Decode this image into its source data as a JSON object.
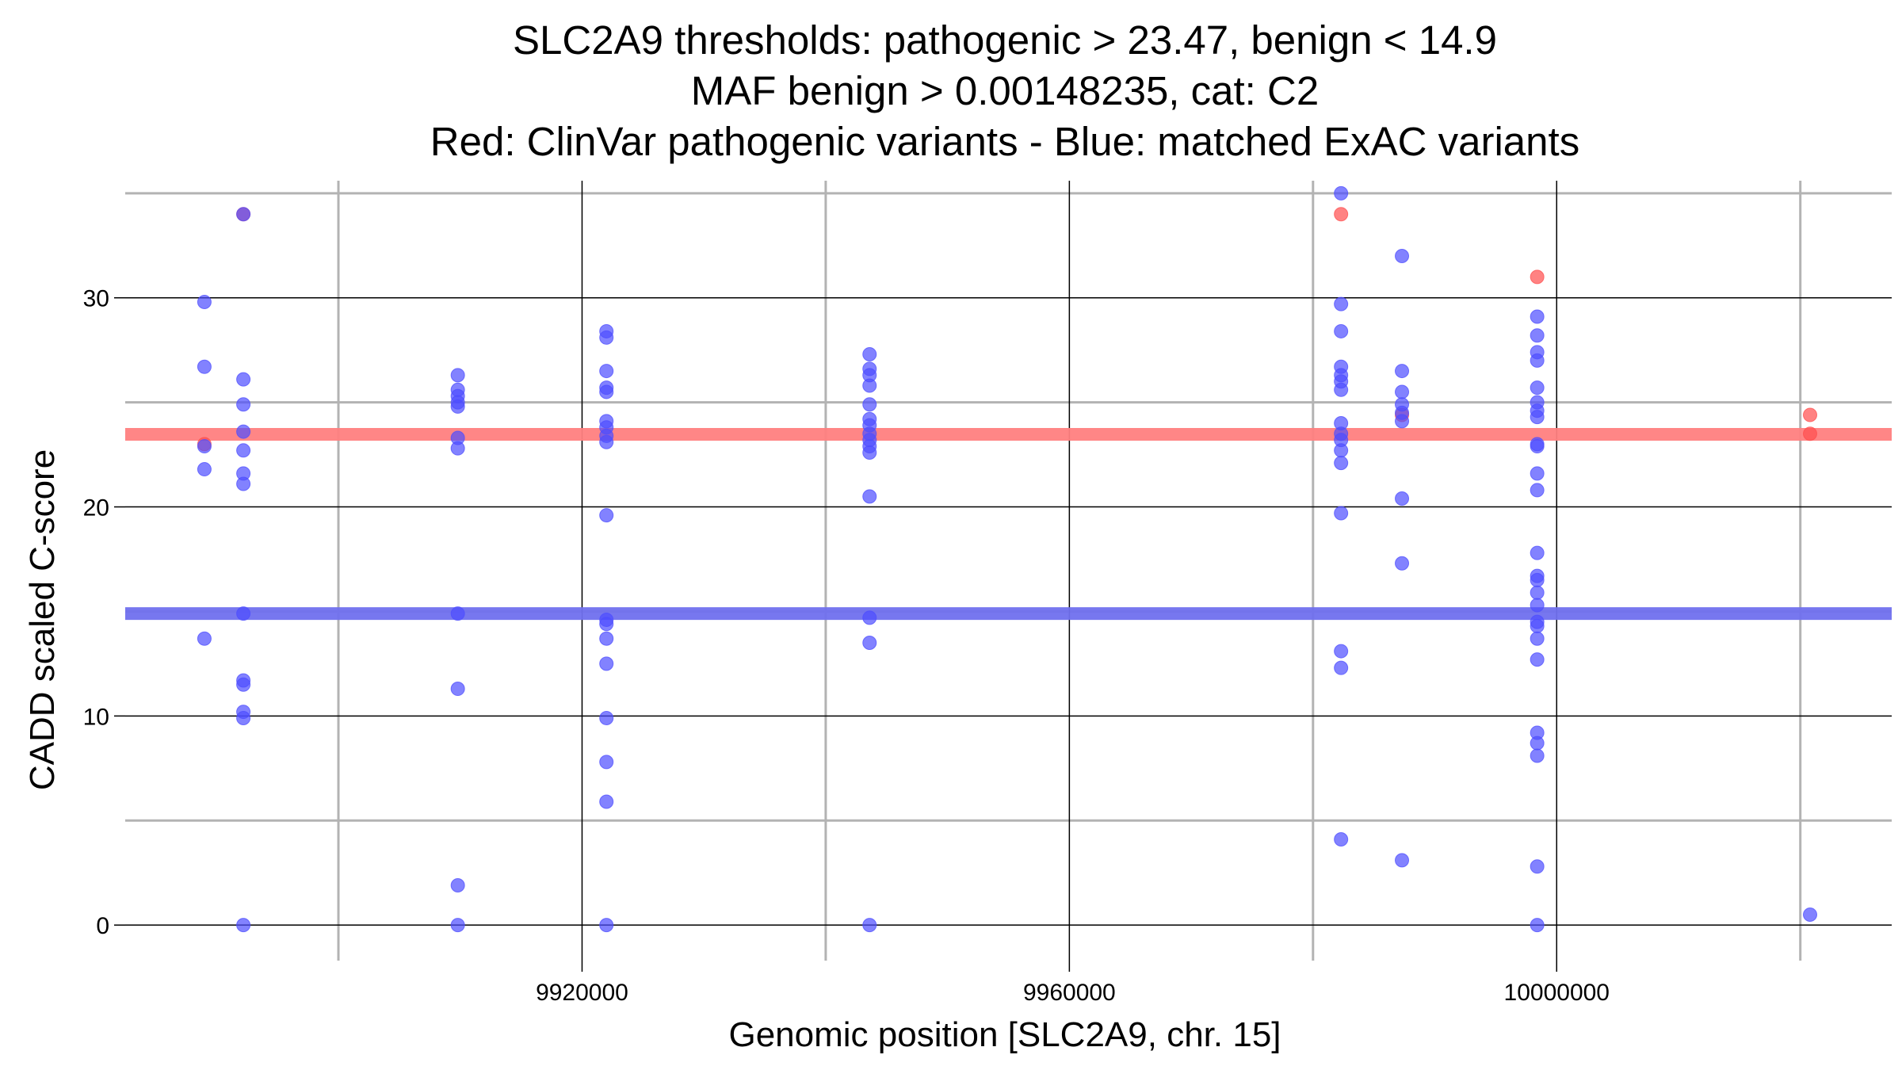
{
  "chart_data": {
    "type": "scatter",
    "title": [
      "SLC2A9 thresholds: pathogenic > 23.47, benign < 14.9",
      "MAF benign > 0.00148235, cat: C2",
      "Red: ClinVar pathogenic variants - Blue: matched ExAC variants"
    ],
    "xlabel": "Genomic position [SLC2A9, chr. 15]",
    "ylabel": "CADD scaled C-score",
    "xlim": [
      9882500,
      10027500
    ],
    "ylim": [
      -1.7,
      35.6
    ],
    "x_major_ticks": [
      9920000,
      9960000,
      10000000
    ],
    "x_major_tick_labels": [
      "9920000",
      "9960000",
      "10000000"
    ],
    "x_minor_gridlines": [
      9900000,
      9940000,
      9980000,
      10020000
    ],
    "y_major_ticks": [
      0,
      10,
      20,
      30
    ],
    "y_major_tick_labels": [
      "0",
      "10",
      "20",
      "30"
    ],
    "y_minor_gridlines": [
      5,
      15,
      25,
      35
    ],
    "thresholds": {
      "pathogenic": {
        "value": 23.47,
        "color": "#ff8080"
      },
      "benign": {
        "value": 14.9,
        "color": "#7070ee"
      }
    },
    "series": [
      {
        "color": "#ff4d4d",
        "points": [
          [
            9889000,
            23.0
          ],
          [
            9892200,
            34.0
          ],
          [
            9982300,
            34.0
          ],
          [
            9987300,
            24.4
          ],
          [
            9998400,
            31.0
          ],
          [
            10020800,
            24.4
          ],
          [
            10020800,
            23.5
          ]
        ]
      },
      {
        "color": "#4d4dff",
        "points": [
          [
            9889000,
            29.8
          ],
          [
            9889000,
            26.7
          ],
          [
            9889000,
            22.9
          ],
          [
            9889000,
            21.8
          ],
          [
            9889000,
            13.7
          ],
          [
            9892200,
            34.0
          ],
          [
            9892200,
            26.1
          ],
          [
            9892200,
            24.9
          ],
          [
            9892200,
            23.6
          ],
          [
            9892200,
            22.7
          ],
          [
            9892200,
            21.6
          ],
          [
            9892200,
            21.1
          ],
          [
            9892200,
            14.9
          ],
          [
            9892200,
            11.7
          ],
          [
            9892200,
            11.5
          ],
          [
            9892200,
            10.2
          ],
          [
            9892200,
            9.9
          ],
          [
            9892200,
            0.0
          ],
          [
            9909800,
            26.3
          ],
          [
            9909800,
            25.6
          ],
          [
            9909800,
            25.3
          ],
          [
            9909800,
            25.0
          ],
          [
            9909800,
            24.8
          ],
          [
            9909800,
            23.3
          ],
          [
            9909800,
            22.8
          ],
          [
            9909800,
            14.9
          ],
          [
            9909800,
            11.3
          ],
          [
            9909800,
            1.9
          ],
          [
            9909800,
            0.0
          ],
          [
            9922000,
            28.4
          ],
          [
            9922000,
            28.1
          ],
          [
            9922000,
            26.5
          ],
          [
            9922000,
            25.7
          ],
          [
            9922000,
            25.5
          ],
          [
            9922000,
            24.1
          ],
          [
            9922000,
            23.8
          ],
          [
            9922000,
            23.4
          ],
          [
            9922000,
            23.1
          ],
          [
            9922000,
            19.6
          ],
          [
            9922000,
            14.6
          ],
          [
            9922000,
            14.4
          ],
          [
            9922000,
            13.7
          ],
          [
            9922000,
            12.5
          ],
          [
            9922000,
            9.9
          ],
          [
            9922000,
            7.8
          ],
          [
            9922000,
            5.9
          ],
          [
            9922000,
            0.0
          ],
          [
            9943600,
            27.3
          ],
          [
            9943600,
            26.6
          ],
          [
            9943600,
            26.3
          ],
          [
            9943600,
            25.8
          ],
          [
            9943600,
            24.9
          ],
          [
            9943600,
            24.2
          ],
          [
            9943600,
            23.9
          ],
          [
            9943600,
            23.5
          ],
          [
            9943600,
            23.2
          ],
          [
            9943600,
            22.9
          ],
          [
            9943600,
            22.6
          ],
          [
            9943600,
            20.5
          ],
          [
            9943600,
            14.7
          ],
          [
            9943600,
            13.5
          ],
          [
            9943600,
            0.0
          ],
          [
            9982300,
            35.0
          ],
          [
            9982300,
            29.7
          ],
          [
            9982300,
            28.4
          ],
          [
            9982300,
            26.7
          ],
          [
            9982300,
            26.3
          ],
          [
            9982300,
            26.0
          ],
          [
            9982300,
            25.6
          ],
          [
            9982300,
            24.0
          ],
          [
            9982300,
            23.5
          ],
          [
            9982300,
            23.2
          ],
          [
            9982300,
            22.7
          ],
          [
            9982300,
            22.1
          ],
          [
            9982300,
            19.7
          ],
          [
            9982300,
            13.1
          ],
          [
            9982300,
            12.3
          ],
          [
            9982300,
            4.1
          ],
          [
            9987300,
            32.0
          ],
          [
            9987300,
            26.5
          ],
          [
            9987300,
            25.5
          ],
          [
            9987300,
            24.9
          ],
          [
            9987300,
            24.5
          ],
          [
            9987300,
            24.1
          ],
          [
            9987300,
            20.4
          ],
          [
            9987300,
            17.3
          ],
          [
            9987300,
            3.1
          ],
          [
            9998400,
            29.1
          ],
          [
            9998400,
            28.2
          ],
          [
            9998400,
            27.4
          ],
          [
            9998400,
            27.0
          ],
          [
            9998400,
            25.7
          ],
          [
            9998400,
            25.0
          ],
          [
            9998400,
            24.6
          ],
          [
            9998400,
            24.3
          ],
          [
            9998400,
            23.0
          ],
          [
            9998400,
            22.9
          ],
          [
            9998400,
            21.6
          ],
          [
            9998400,
            20.8
          ],
          [
            9998400,
            17.8
          ],
          [
            9998400,
            16.7
          ],
          [
            9998400,
            16.5
          ],
          [
            9998400,
            15.9
          ],
          [
            9998400,
            15.3
          ],
          [
            9998400,
            14.5
          ],
          [
            9998400,
            14.3
          ],
          [
            9998400,
            13.7
          ],
          [
            9998400,
            12.7
          ],
          [
            9998400,
            9.2
          ],
          [
            9998400,
            8.7
          ],
          [
            9998400,
            8.1
          ],
          [
            9998400,
            2.8
          ],
          [
            9998400,
            0.0
          ],
          [
            10020800,
            0.5
          ]
        ]
      }
    ]
  }
}
